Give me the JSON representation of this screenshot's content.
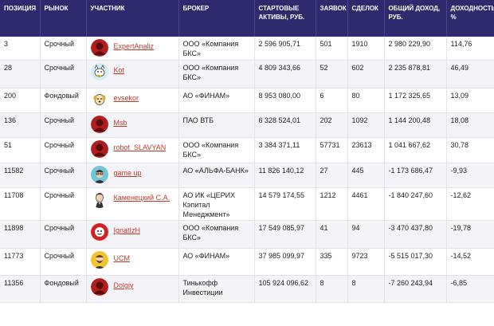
{
  "headers": {
    "position": "ПОЗИЦИЯ",
    "market": "РЫНОК",
    "participant": "УЧАСТНИК",
    "broker": "БРОКЕР",
    "assets": "СТАРТОВЫЕ АКТИВЫ, РУБ.",
    "orders": "ЗАЯВОК",
    "deals": "СДЕЛОК",
    "income": "ОБЩИЙ ДОХОД, РУБ.",
    "yield": "ДОХОДНОСТЬ, %"
  },
  "rows": [
    {
      "position": "3",
      "market": "Срочный",
      "name": "ExpertAnaliz",
      "avatar": "red-silhouette-icon",
      "broker": "ООО «Компания БКС»",
      "assets": "2 596 905,71",
      "orders": "501",
      "deals": "1910",
      "income": "2 980 229,90",
      "yield": "114,76"
    },
    {
      "position": "28",
      "market": "Срочный",
      "name": "Kot",
      "avatar": "cat-face-icon",
      "broker": "ООО «Компания БКС»",
      "assets": "4 809 343,66",
      "orders": "52",
      "deals": "602",
      "income": "2 235 878,81",
      "yield": "46,49"
    },
    {
      "position": "200",
      "market": "Фондовый",
      "name": "evsekor",
      "avatar": "dog-face-icon",
      "broker": "АО «ФИНАМ»",
      "assets": "8 953 080,00",
      "orders": "6",
      "deals": "80",
      "income": "1 172 325,65",
      "yield": "13,09"
    },
    {
      "position": "136",
      "market": "Срочный",
      "name": "Msb",
      "avatar": "red-silhouette-icon",
      "broker": "ПАО ВТБ",
      "assets": "6 328 524,01",
      "orders": "202",
      "deals": "1092",
      "income": "1 144 200,48",
      "yield": "18,08"
    },
    {
      "position": "51",
      "market": "Срочный",
      "name": "robot_SLAVYAN",
      "avatar": "red-silhouette-icon",
      "broker": "ООО «Компания БКС»",
      "assets": "3 384 371,11",
      "orders": "57731",
      "deals": "23613",
      "income": "1 041 667,62",
      "yield": "30,78"
    },
    {
      "position": "11582",
      "market": "Срочный",
      "name": "game up",
      "avatar": "glasses-man-icon",
      "broker": "АО «АЛЬФА-БАНК»",
      "assets": "11 826 140,12",
      "orders": "27",
      "deals": "445",
      "income": "-1 173 686,47",
      "yield": "-9,93"
    },
    {
      "position": "11708",
      "market": "Срочный",
      "name": "Каменецкий С.А.",
      "avatar": "cartoon-man-icon",
      "broker": "АО ИК «ЦЕРИХ Кэпитал Менеджмент»",
      "assets": "14 579 174,55",
      "orders": "1212",
      "deals": "4461",
      "income": "-1 840 247,60",
      "yield": "-12,62"
    },
    {
      "position": "11898",
      "market": "Срочный",
      "name": "IgnatIzH",
      "avatar": "red-face-icon",
      "broker": "ООО «Компания БКС»",
      "assets": "17 549 085,97",
      "orders": "41",
      "deals": "94",
      "income": "-3 470 437,80",
      "yield": "-19,78"
    },
    {
      "position": "11773",
      "market": "Срочный",
      "name": "UCM",
      "avatar": "bearded-man-icon",
      "broker": "АО «ФИНАМ»",
      "assets": "37 985 099,97",
      "orders": "335",
      "deals": "9723",
      "income": "-5 515 017,30",
      "yield": "-14,52"
    },
    {
      "position": "11356",
      "market": "Фондовый",
      "name": "Dolgiy",
      "avatar": "red-silhouette-icon",
      "broker": "Тинькофф Инвестиции",
      "assets": "105 924 096,62",
      "orders": "8",
      "deals": "8",
      "income": "-7 260 243,94",
      "yield": "-6,85"
    }
  ],
  "colors": {
    "header_bg": "#2e2a6e",
    "link": "#c0392b",
    "avatar_red": "#b01e1e"
  }
}
